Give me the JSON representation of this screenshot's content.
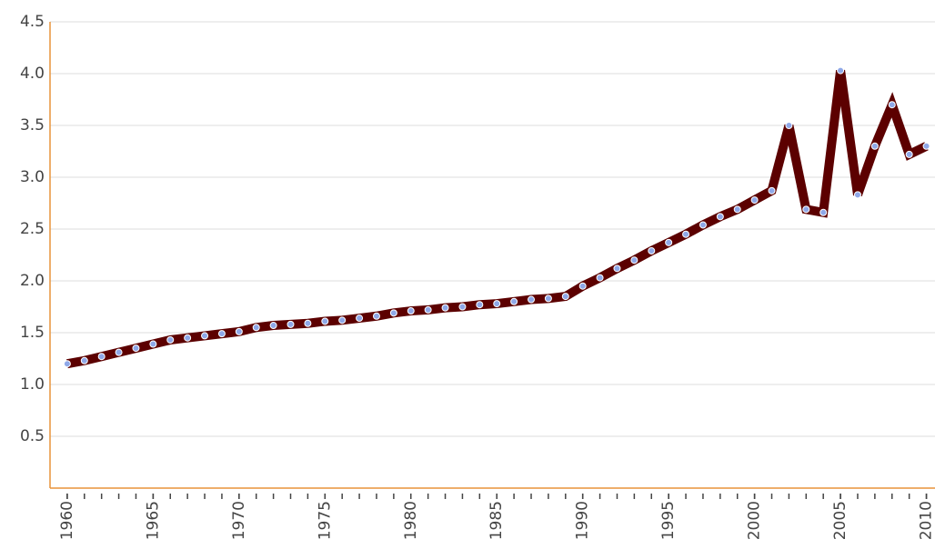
{
  "chart_data": {
    "type": "line",
    "x": [
      1960,
      1961,
      1962,
      1963,
      1964,
      1965,
      1966,
      1967,
      1968,
      1969,
      1970,
      1971,
      1972,
      1973,
      1974,
      1975,
      1976,
      1977,
      1978,
      1979,
      1980,
      1981,
      1982,
      1983,
      1984,
      1985,
      1986,
      1987,
      1988,
      1989,
      1990,
      1991,
      1992,
      1993,
      1994,
      1995,
      1996,
      1997,
      1998,
      1999,
      2000,
      2001,
      2002,
      2003,
      2004,
      2005,
      2006,
      2007,
      2008,
      2009,
      2010
    ],
    "values": [
      1.2,
      1.23,
      1.27,
      1.31,
      1.35,
      1.39,
      1.43,
      1.45,
      1.47,
      1.49,
      1.51,
      1.55,
      1.57,
      1.58,
      1.59,
      1.61,
      1.62,
      1.64,
      1.66,
      1.69,
      1.71,
      1.72,
      1.74,
      1.75,
      1.77,
      1.78,
      1.8,
      1.82,
      1.83,
      1.85,
      1.95,
      2.03,
      2.12,
      2.2,
      2.29,
      2.37,
      2.45,
      2.54,
      2.62,
      2.69,
      2.78,
      2.87,
      3.5,
      2.69,
      2.66,
      4.03,
      2.83,
      3.3,
      3.7,
      3.22,
      3.3
    ],
    "color": "#5c0000",
    "marker_color": "#8fa8e8",
    "xlim": [
      1959,
      2010.5
    ],
    "xticks": [
      1960,
      1965,
      1970,
      1975,
      1980,
      1985,
      1990,
      1995,
      2000,
      2005,
      2010
    ],
    "ylim": [
      0,
      4.5
    ],
    "yticks": [
      {
        "value": 0.5,
        "label": "0.5"
      },
      {
        "value": 1,
        "label": "1.0"
      },
      {
        "value": 1.5,
        "label": "1.5"
      },
      {
        "value": 2,
        "label": "2.0"
      },
      {
        "value": 2.5,
        "label": "2.5"
      },
      {
        "value": 3,
        "label": "3.0"
      },
      {
        "value": 3.5,
        "label": "3.5"
      },
      {
        "value": 4,
        "label": "4.0"
      },
      {
        "value": 4.5,
        "label": "4.5"
      }
    ],
    "grid": true
  }
}
